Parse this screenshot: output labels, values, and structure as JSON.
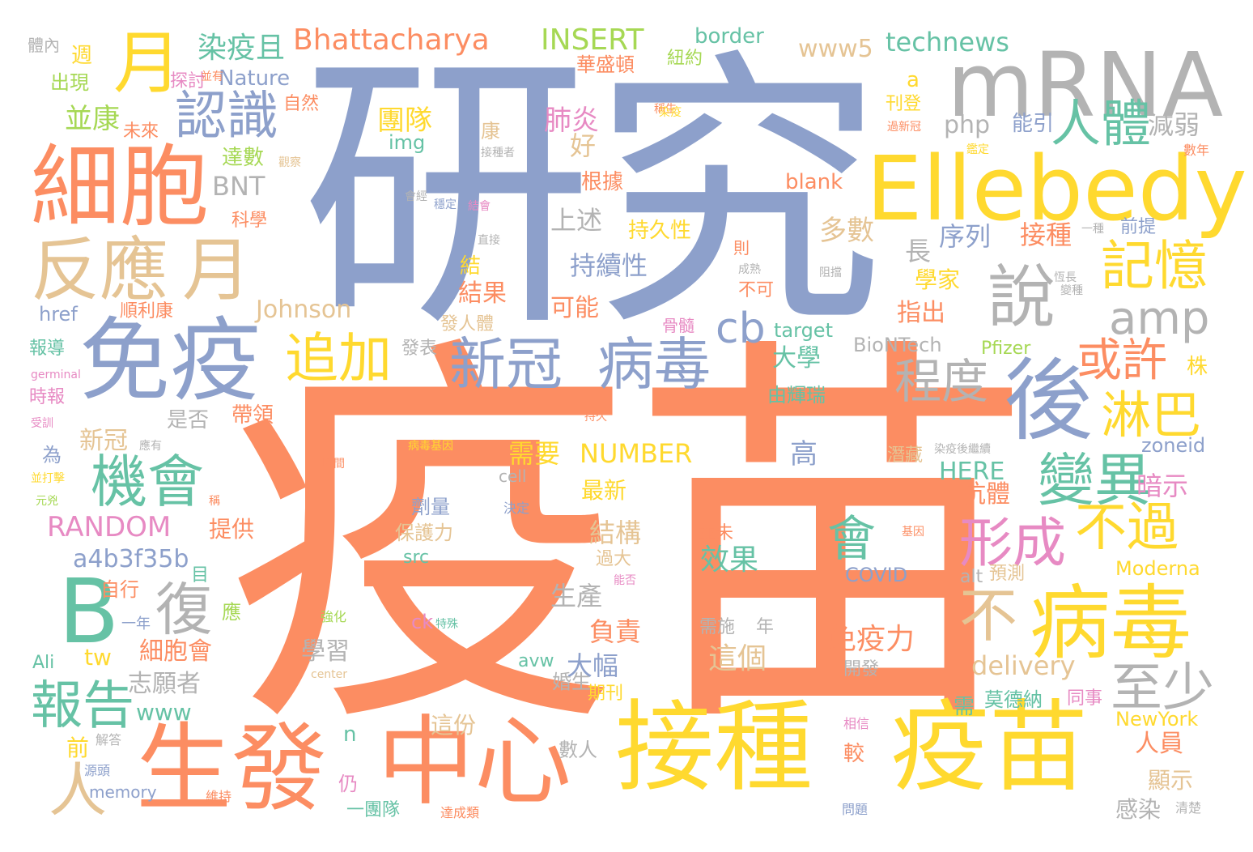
{
  "words": [
    "研究",
    "疫苗",
    "mRNA",
    "Ellebedy",
    "細胞",
    "免疫",
    "反應",
    "月",
    "後",
    "說",
    "認識",
    "人體",
    "記憶",
    "免疫",
    "新冠",
    "病毒",
    "追加",
    "接種",
    "疫苗",
    "中心",
    "生發",
    "機會",
    "變異",
    "病毒",
    "B",
    "報告",
    "復",
    "人",
    "不過",
    "不",
    "形成",
    "淋巴",
    "或許",
    "程度",
    "amp",
    "cb",
    "至少",
    "會",
    "免疫力",
    "效果",
    "這個",
    "Bhattacharya",
    "INSERT",
    "www5",
    "technews",
    "border",
    "染疫且",
    "並康",
    "Nature",
    "團隊",
    "肺炎",
    "好",
    "康",
    "php",
    "能引",
    "減弱",
    "img",
    "達數",
    "根據",
    "blank",
    "BNT",
    "上述",
    "多數",
    "持久性",
    "序列",
    "接種",
    "長",
    "持續性",
    "學家",
    "Johnson",
    "可能",
    "結果",
    "結",
    "指出",
    "大學",
    "target",
    "BioNTech",
    "Pfizer",
    "由輝瑞",
    "淋巴",
    "新冠",
    "是否",
    "帶領",
    "需要",
    "NUMBER",
    "高",
    "HERE",
    "抗體",
    "暗示",
    "zoneid",
    "RANDOM",
    "提供",
    "a4b3f35b",
    "結構",
    "最新",
    "生產",
    "負責",
    "大幅",
    "細胞會",
    "學習",
    "志願者",
    "www",
    "tw",
    "delivery",
    "avw",
    "期刊",
    "莫德納",
    "NewYork",
    "人員",
    "顯示",
    "感染",
    "這份",
    "n",
    "仍",
    "前",
    "一團隊",
    "數人",
    "較",
    "memory",
    "Ali",
    "COVID",
    "Moderna",
    "alt",
    "預測",
    "src",
    "保護力",
    "劑量",
    "cell",
    "並未",
    "需施",
    "年",
    "開發",
    "過大",
    "婚生",
    "週",
    "出現",
    "探討",
    "自然",
    "華盛頓",
    "紐約",
    "刊登",
    "a",
    "未來",
    "科學",
    "骨髓",
    "發表",
    "發人體",
    "順利康",
    "href",
    "報導",
    "時報",
    "潛藏",
    "株",
    "為",
    "germinal",
    "center",
    "特殊",
    "決定",
    "目",
    "自行",
    "應",
    "一年",
    "強化",
    "ck",
    "源頭",
    "維持",
    "解答",
    "問題",
    "清楚",
    "相信",
    "需",
    "同事",
    "體內",
    "觀察",
    "會經",
    "結會",
    "直接",
    "持久",
    "病毒基因",
    "則",
    "不可",
    "成熟",
    "阻擋",
    "一種",
    "前提",
    "恆長",
    "變種",
    "過新冠",
    "數年",
    "鑑定",
    "時間",
    "受訓",
    "並打擊",
    "元兇",
    "稱",
    "基因",
    "穩定",
    "能否",
    "稱生",
    "接種者",
    "應有",
    "染疫後繼續",
    "達成類",
    "染疫",
    "並有",
    "肺"
  ],
  "colors": {
    "orange": "#fc8d62",
    "blue": "#8da0cb",
    "yellow": "#ffd92f",
    "tan": "#e5c494",
    "gray": "#b3b3b3",
    "green": "#66c2a5",
    "pink": "#e78ac3",
    "lime": "#a6d854"
  }
}
